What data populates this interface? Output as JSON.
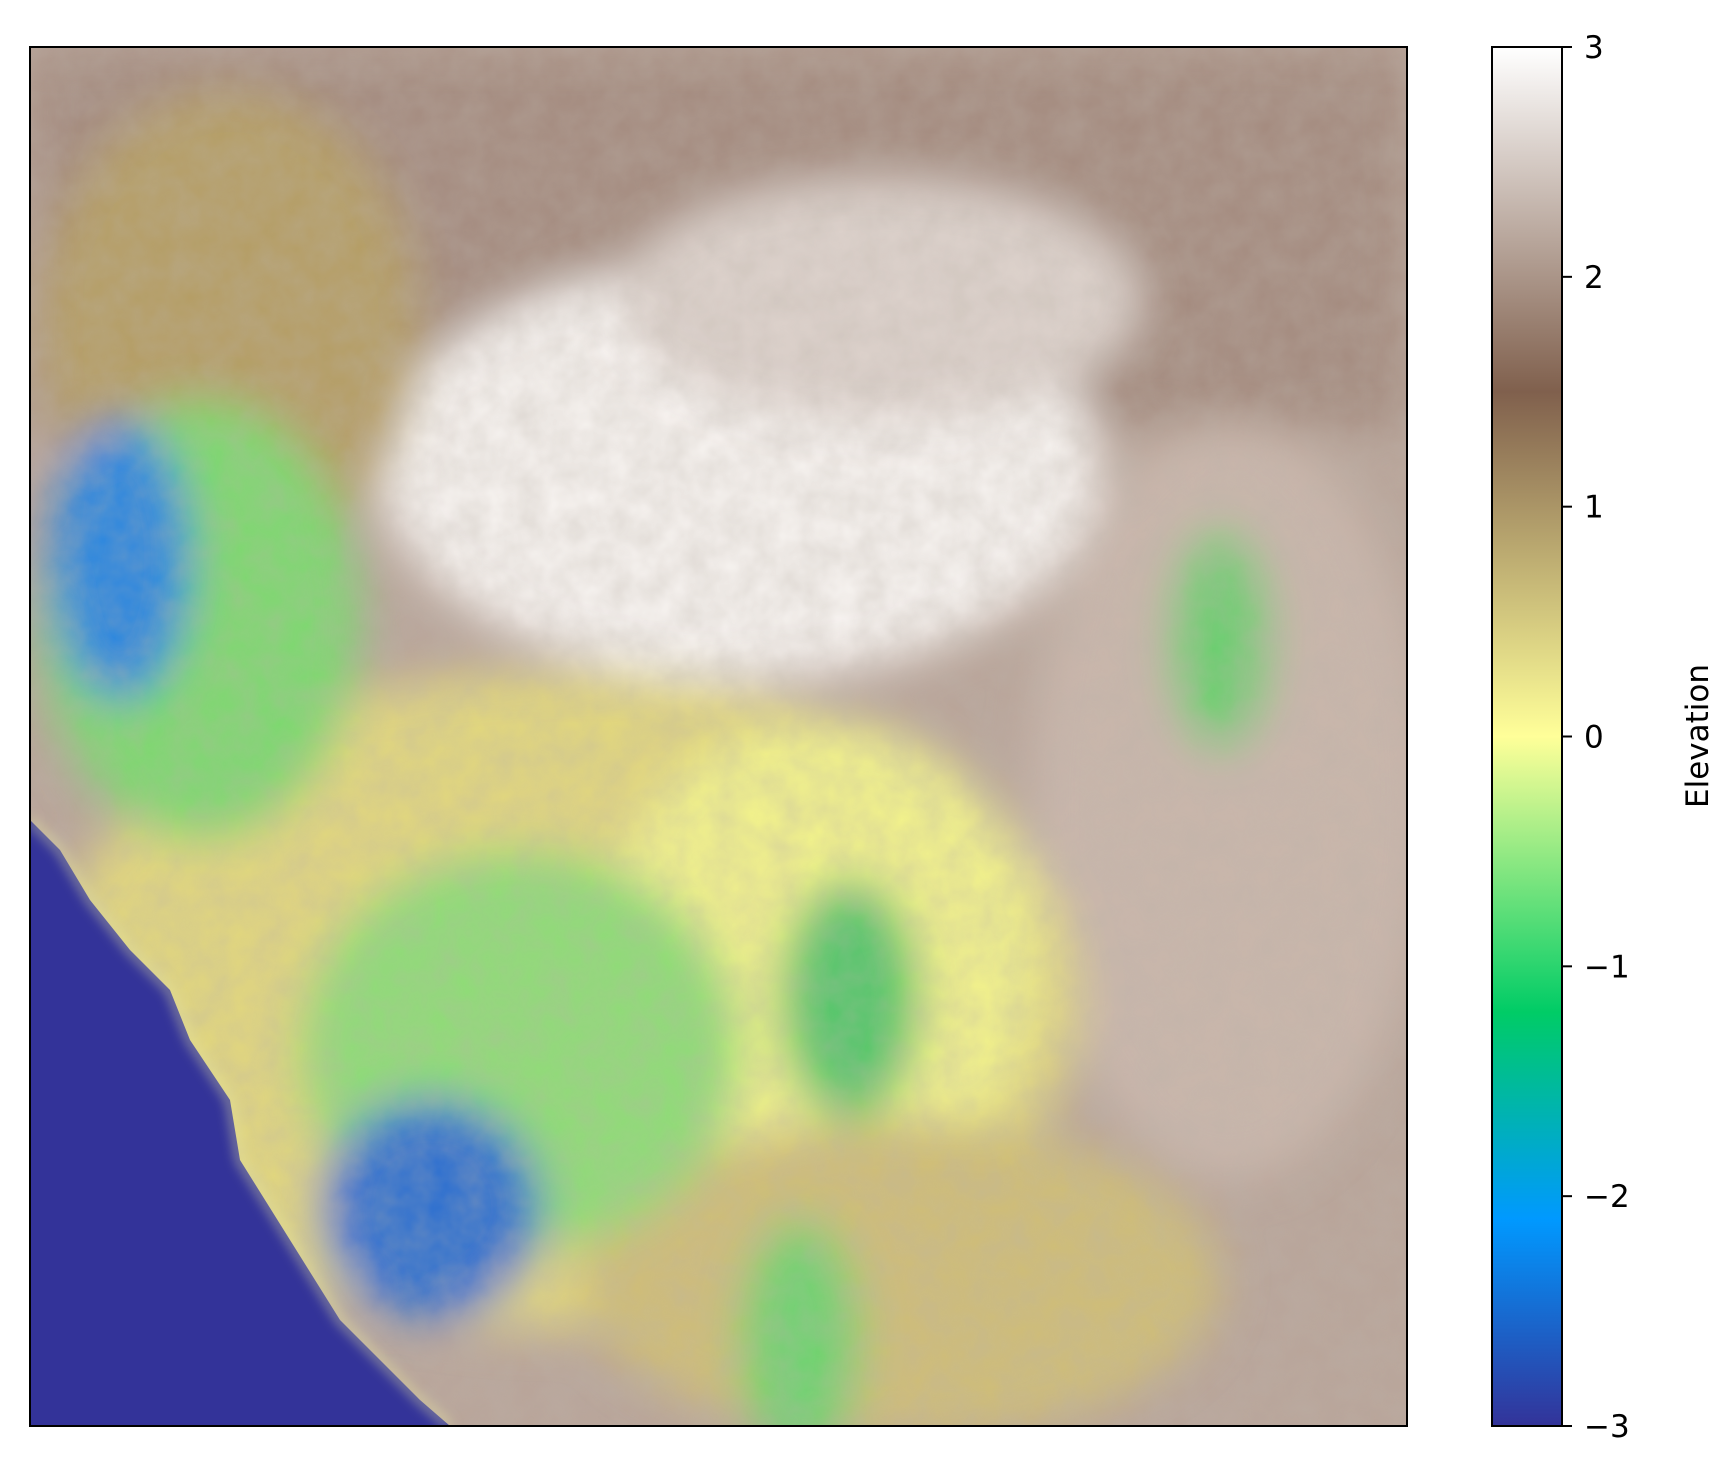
{
  "chart_data": {
    "type": "heatmap",
    "title": "",
    "xlabel": "",
    "ylabel": "",
    "x_ticks_visible": false,
    "y_ticks_visible": false,
    "grid": false,
    "colormap": "terrain",
    "colorbar": {
      "label": "Elevation",
      "range": [
        -3,
        3
      ],
      "ticks": [
        -3,
        -2,
        -1,
        0,
        1,
        2,
        3
      ],
      "tick_labels": [
        "−3",
        "−2",
        "−1",
        "0",
        "1",
        "2",
        "3"
      ],
      "stops": [
        {
          "value": -3.0,
          "color": "#333399"
        },
        {
          "value": -2.1,
          "color": "#0099ff"
        },
        {
          "value": -1.2,
          "color": "#00cc66"
        },
        {
          "value": 0.0,
          "color": "#ffff99"
        },
        {
          "value": 1.5,
          "color": "#80604d"
        },
        {
          "value": 3.0,
          "color": "#ffffff"
        }
      ]
    },
    "regions_description": [
      {
        "area": "bottom-left",
        "value": -3
      },
      {
        "area": "left-center",
        "value": -1.5
      },
      {
        "area": "center",
        "value": 0
      },
      {
        "area": "top-right",
        "value": 2
      },
      {
        "area": "center-top",
        "value": 2.8
      }
    ]
  }
}
